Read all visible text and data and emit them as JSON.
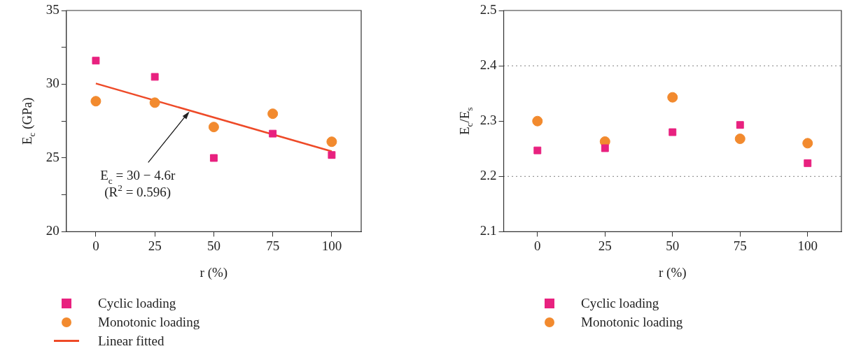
{
  "chart_data": [
    {
      "type": "scatter",
      "xlabel": "r (%)",
      "ylabel": "E$_{c}$ (GPa)",
      "x": [
        0,
        25,
        50,
        75,
        100
      ],
      "xlim": [
        -12.5,
        112.5
      ],
      "xticks": [
        0,
        25,
        50,
        75,
        100
      ],
      "ylim": [
        20,
        35
      ],
      "yticks": [
        20,
        {
          "value": 22.5,
          "label": null
        },
        25,
        {
          "value": 27.5,
          "label": null
        },
        30,
        {
          "value": 32.5,
          "label": null
        },
        35
      ],
      "legend": "bottom left",
      "series": [
        {
          "name": "Cyclic loading",
          "marker": "square",
          "color": "#e8217f",
          "values": [
            31.6,
            30.5,
            25.0,
            26.65,
            25.2
          ]
        },
        {
          "name": "Monotonic loading",
          "marker": "circle",
          "color": "#f28a2e",
          "values": [
            28.85,
            28.75,
            27.1,
            28.0,
            26.1
          ]
        },
        {
          "name": "Linear fitted",
          "type": "line",
          "marker": "none",
          "color": "#ee4a28",
          "x": [
            0,
            100
          ],
          "values": [
            30.05,
            25.45
          ]
        }
      ],
      "annotations": [
        {
          "text": "E$_{c}$ = 30 − 4.6r\n(R$^{2}$ = 0.596)",
          "x": 40,
          "y": 28.25
        }
      ]
    },
    {
      "type": "scatter",
      "xlabel": "r (%)",
      "ylabel": "E$_{c}$/E$_{s}$",
      "x": [
        0,
        25,
        50,
        75,
        100
      ],
      "xlim": [
        -12.5,
        112.5
      ],
      "xticks": [
        0,
        25,
        50,
        75,
        100
      ],
      "ylim": [
        2.1,
        2.5
      ],
      "yticks": [
        2.1,
        2.2,
        2.3,
        2.4,
        2.5
      ],
      "legend": "bottom left",
      "ref_lines": [
        {
          "axis": "y",
          "value": 2.2,
          "line_style": "dotted"
        },
        {
          "axis": "y",
          "value": 2.4,
          "line_style": "dotted"
        }
      ],
      "series": [
        {
          "name": "Cyclic loading",
          "marker": "square",
          "color": "#e8217f",
          "values": [
            2.247,
            2.251,
            2.28,
            2.293,
            2.224
          ]
        },
        {
          "name": "Monotonic loading",
          "marker": "circle",
          "color": "#f28a2e",
          "values": [
            2.3,
            2.263,
            2.343,
            2.268,
            2.26
          ]
        }
      ]
    }
  ]
}
